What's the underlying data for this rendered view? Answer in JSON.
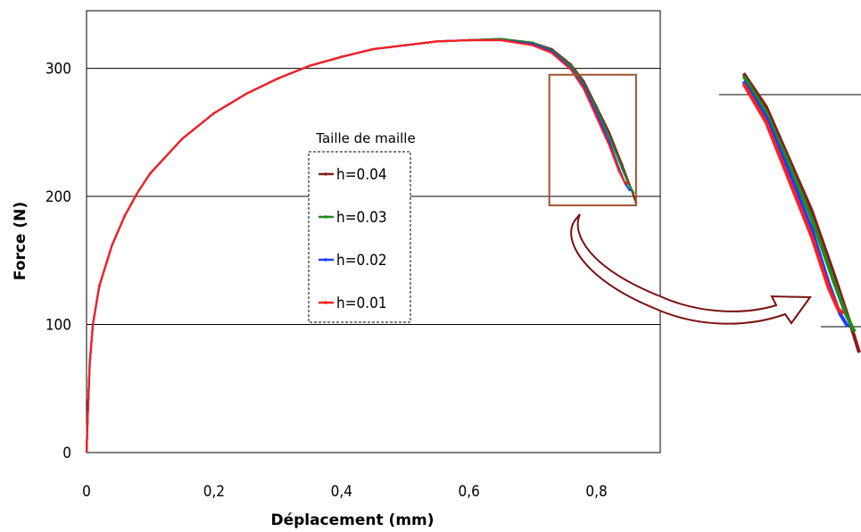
{
  "chart_data": {
    "type": "line",
    "xlabel": "Déplacement (mm)",
    "ylabel": "Force (N)",
    "xlim": [
      0,
      0.9
    ],
    "ylim": [
      0,
      345
    ],
    "x_ticks": [
      0,
      0.2,
      0.4,
      0.6,
      0.8
    ],
    "x_tick_labels": [
      "0",
      "0,2",
      "0,4",
      "0,6",
      "0,8"
    ],
    "y_ticks": [
      0,
      100,
      200,
      300
    ],
    "y_tick_labels": [
      "0",
      "100",
      "200",
      "300"
    ],
    "y_gridlines": [
      100,
      200,
      300
    ],
    "legend": {
      "title": "Taille de maille",
      "placement": "center",
      "entries": [
        "h=0.04",
        "h=0.03",
        "h=0.02",
        "h=0.01"
      ]
    },
    "zoom_box": {
      "x": [
        0.74,
        0.89
      ],
      "y": [
        193,
        295
      ]
    },
    "series": [
      {
        "name": "h=0.04",
        "color": "#8b1a1a",
        "points": [
          [
            0,
            0
          ],
          [
            0.002,
            30
          ],
          [
            0.005,
            70
          ],
          [
            0.01,
            100
          ],
          [
            0.02,
            130
          ],
          [
            0.04,
            162
          ],
          [
            0.06,
            185
          ],
          [
            0.08,
            203
          ],
          [
            0.1,
            218
          ],
          [
            0.15,
            245
          ],
          [
            0.2,
            265
          ],
          [
            0.25,
            280
          ],
          [
            0.3,
            292
          ],
          [
            0.35,
            302
          ],
          [
            0.4,
            309
          ],
          [
            0.45,
            315
          ],
          [
            0.5,
            318
          ],
          [
            0.55,
            321
          ],
          [
            0.6,
            322
          ],
          [
            0.65,
            323
          ],
          [
            0.7,
            320
          ],
          [
            0.73,
            315
          ],
          [
            0.76,
            303
          ],
          [
            0.78,
            290
          ],
          [
            0.8,
            270
          ],
          [
            0.82,
            250
          ],
          [
            0.84,
            225
          ],
          [
            0.855,
            205
          ],
          [
            0.862,
            195
          ]
        ]
      },
      {
        "name": "h=0.03",
        "color": "#1e8c1e",
        "points": [
          [
            0,
            0
          ],
          [
            0.002,
            30
          ],
          [
            0.005,
            70
          ],
          [
            0.01,
            100
          ],
          [
            0.02,
            130
          ],
          [
            0.04,
            162
          ],
          [
            0.06,
            185
          ],
          [
            0.08,
            203
          ],
          [
            0.1,
            218
          ],
          [
            0.15,
            245
          ],
          [
            0.2,
            265
          ],
          [
            0.25,
            280
          ],
          [
            0.3,
            292
          ],
          [
            0.35,
            302
          ],
          [
            0.4,
            309
          ],
          [
            0.45,
            315
          ],
          [
            0.5,
            318
          ],
          [
            0.55,
            321
          ],
          [
            0.6,
            322
          ],
          [
            0.65,
            323
          ],
          [
            0.7,
            320
          ],
          [
            0.73,
            314
          ],
          [
            0.76,
            302
          ],
          [
            0.78,
            288
          ],
          [
            0.8,
            268
          ],
          [
            0.82,
            247
          ],
          [
            0.84,
            222
          ],
          [
            0.85,
            210
          ],
          [
            0.858,
            203
          ]
        ]
      },
      {
        "name": "h=0.02",
        "color": "#1e3cff",
        "points": [
          [
            0,
            0
          ],
          [
            0.002,
            30
          ],
          [
            0.005,
            70
          ],
          [
            0.01,
            100
          ],
          [
            0.02,
            130
          ],
          [
            0.04,
            162
          ],
          [
            0.06,
            185
          ],
          [
            0.08,
            203
          ],
          [
            0.1,
            218
          ],
          [
            0.15,
            245
          ],
          [
            0.2,
            265
          ],
          [
            0.25,
            280
          ],
          [
            0.3,
            292
          ],
          [
            0.35,
            302
          ],
          [
            0.4,
            309
          ],
          [
            0.45,
            315
          ],
          [
            0.5,
            318
          ],
          [
            0.55,
            321
          ],
          [
            0.6,
            322
          ],
          [
            0.65,
            322
          ],
          [
            0.7,
            319
          ],
          [
            0.73,
            313
          ],
          [
            0.76,
            300
          ],
          [
            0.78,
            286
          ],
          [
            0.8,
            265
          ],
          [
            0.82,
            243
          ],
          [
            0.835,
            222
          ],
          [
            0.845,
            210
          ],
          [
            0.852,
            205
          ]
        ]
      },
      {
        "name": "h=0.01",
        "color": "#ff1e1e",
        "points": [
          [
            0,
            0
          ],
          [
            0.002,
            30
          ],
          [
            0.005,
            70
          ],
          [
            0.01,
            100
          ],
          [
            0.02,
            130
          ],
          [
            0.04,
            162
          ],
          [
            0.06,
            185
          ],
          [
            0.08,
            203
          ],
          [
            0.1,
            218
          ],
          [
            0.15,
            245
          ],
          [
            0.2,
            265
          ],
          [
            0.25,
            280
          ],
          [
            0.3,
            292
          ],
          [
            0.35,
            302
          ],
          [
            0.4,
            309
          ],
          [
            0.45,
            315
          ],
          [
            0.5,
            318
          ],
          [
            0.55,
            321
          ],
          [
            0.6,
            322
          ],
          [
            0.65,
            322
          ],
          [
            0.7,
            318
          ],
          [
            0.73,
            312
          ],
          [
            0.76,
            299
          ],
          [
            0.78,
            284
          ],
          [
            0.8,
            262
          ],
          [
            0.82,
            240
          ],
          [
            0.835,
            220
          ],
          [
            0.843,
            212
          ],
          [
            0.848,
            210
          ]
        ]
      }
    ]
  }
}
